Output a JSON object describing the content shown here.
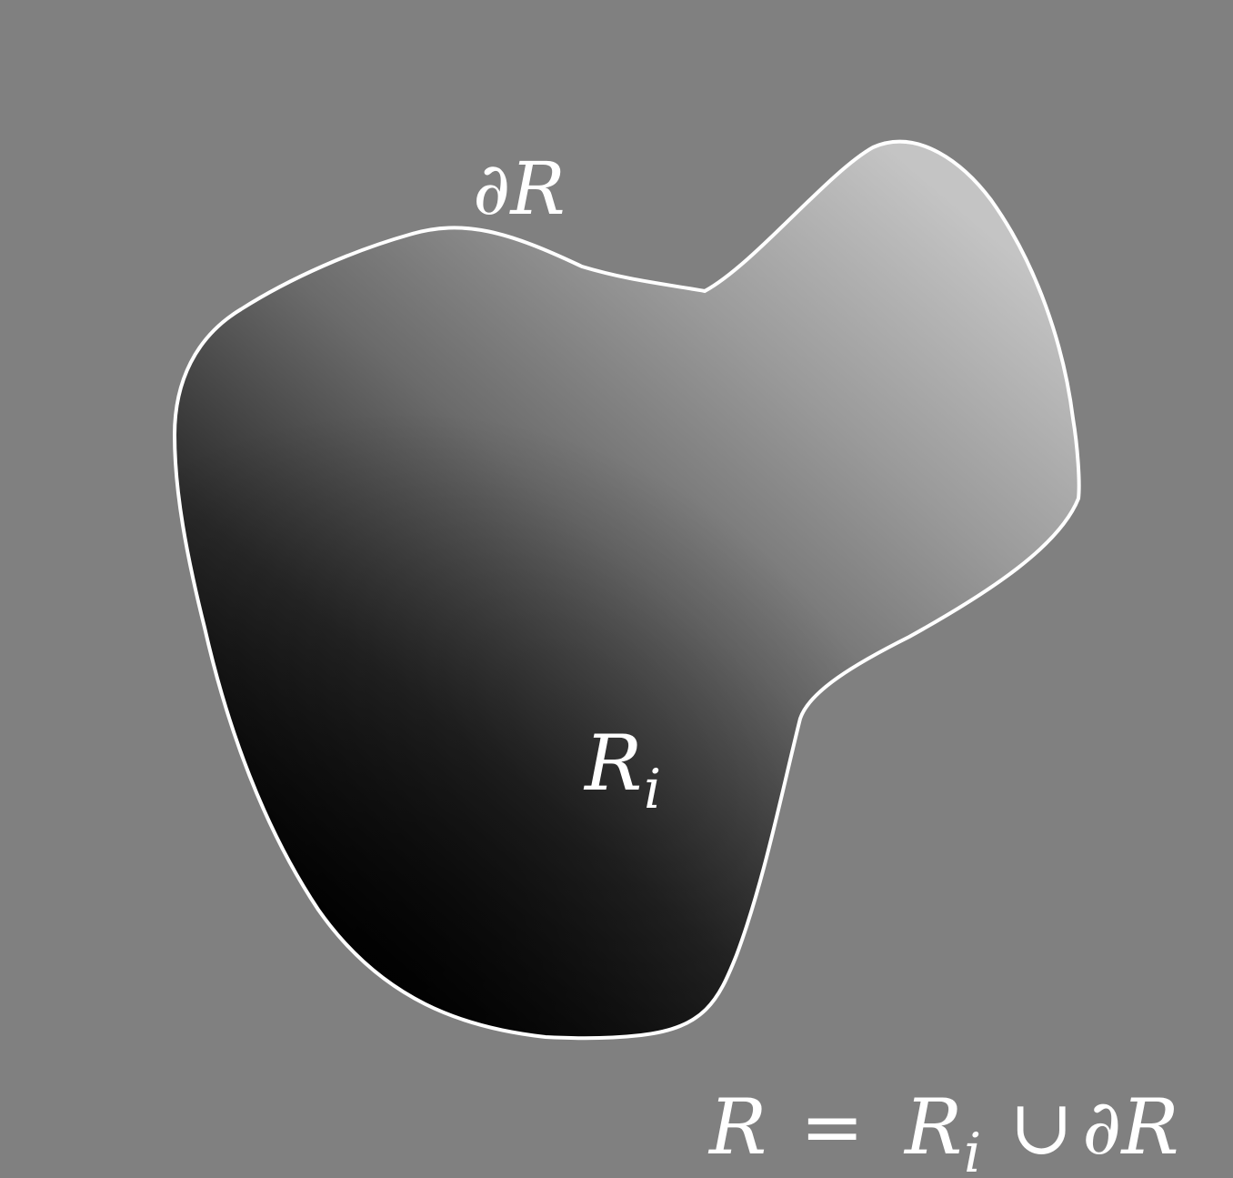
{
  "labels": {
    "boundary": "∂R",
    "interior_main": "R",
    "interior_sub": "i",
    "union_lhs": "R",
    "union_eq": "=",
    "union_r": "R",
    "union_sub": "i",
    "union_cup": "∪",
    "union_boundary": "∂R"
  },
  "colors": {
    "background": "#808080",
    "outline": "#ffffff",
    "fill_dark": "#000000",
    "fill_light": "#c4c4c4"
  }
}
